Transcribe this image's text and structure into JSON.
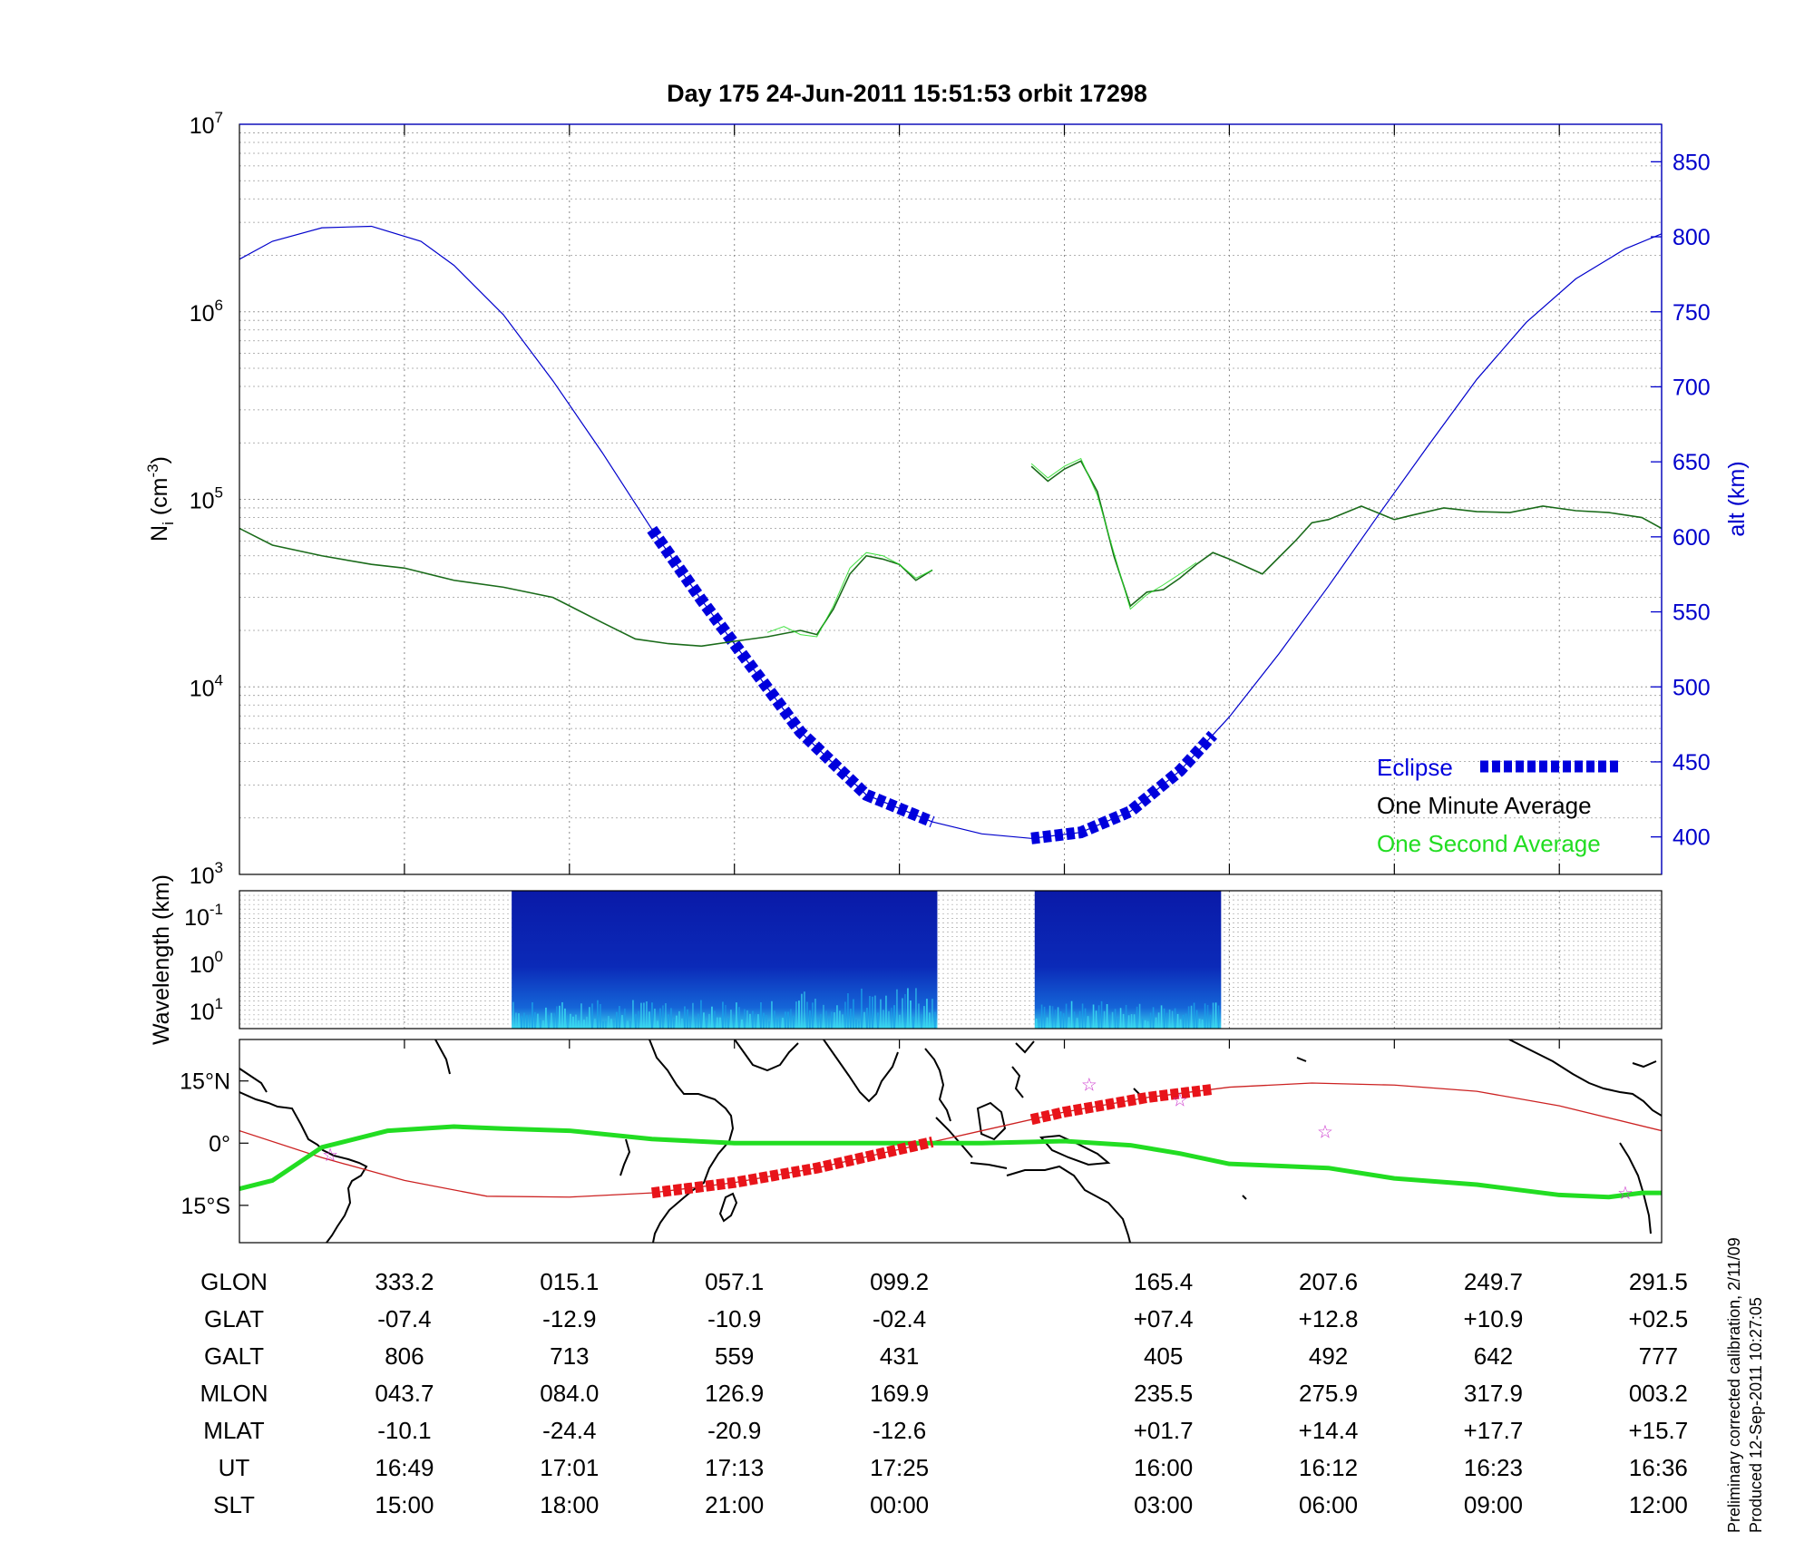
{
  "title": "Day 175  24-Jun-2011 15:51:53   orbit 17298",
  "colors": {
    "altitude": "#0000cc",
    "eclipse": "#0000dd",
    "one_minute": "#000000",
    "one_second": "#22dd22",
    "density": "#1a6b1a",
    "track_eclipse": "#e8141a",
    "orbit_line": "#cc2222",
    "magnetic_equator": "#22dd22",
    "star": "#cc33cc",
    "spectrogram_dark": "#0a1a9c",
    "spectrogram_bright": "#39d8f0"
  },
  "chart_data": [
    {
      "type": "line",
      "panel": "density-altitude",
      "ylabel": "N",
      "ylabel_sub": "i",
      "ylabel_unit": "(cm",
      "ylabel_sup": "-3",
      "ylabel_end": ")",
      "yscale": "log",
      "ylim": [
        1000,
        10000000
      ],
      "yticks": [
        {
          "base": "10",
          "exp": "3"
        },
        {
          "base": "10",
          "exp": "4"
        },
        {
          "base": "10",
          "exp": "5"
        },
        {
          "base": "10",
          "exp": "6"
        },
        {
          "base": "10",
          "exp": "7"
        }
      ],
      "y2label": "alt (km)",
      "y2lim": [
        375,
        875
      ],
      "y2ticks": [
        "400",
        "450",
        "500",
        "550",
        "600",
        "650",
        "700",
        "750",
        "800",
        "850"
      ],
      "grid": true,
      "legend": {
        "position": "bottom-right",
        "eclipse": "Eclipse",
        "one_minute": "One Minute Average",
        "one_second": "One Second Average"
      },
      "altitude_km": {
        "x": [
          0,
          0.2,
          0.5,
          0.8,
          1.1,
          1.3,
          1.6,
          1.9,
          2.2,
          2.5,
          2.8,
          3.1,
          3.4,
          3.8,
          4.2,
          4.5,
          4.8,
          5.1,
          5.4,
          5.7,
          6.0,
          6.3,
          6.6,
          6.9,
          7.2,
          7.5,
          7.8,
          8.1,
          8.4,
          8.62
        ],
        "y": [
          785,
          797,
          806,
          807,
          797,
          781,
          748,
          704,
          656,
          605,
          558,
          514,
          470,
          428,
          410,
          402,
          399,
          403,
          417,
          444,
          480,
          522,
          567,
          614,
          660,
          705,
          743,
          772,
          792,
          802
        ],
        "eclipse_ranges": [
          [
            2.5,
            4.2
          ],
          [
            4.8,
            5.9
          ]
        ]
      },
      "series": [
        {
          "name": "One Minute Average",
          "x": [
            0,
            0.2,
            0.5,
            0.8,
            1.0,
            1.3,
            1.6,
            1.9,
            2.2,
            2.4,
            2.6,
            2.8,
            3.0,
            3.2,
            3.4,
            3.5,
            3.6,
            3.7,
            3.8,
            3.9,
            4.0,
            4.1,
            4.2
          ],
          "y": [
            70000,
            57000,
            50000,
            45000,
            43000,
            37000,
            34000,
            30000,
            22000,
            18000,
            17000,
            16500,
            17500,
            18500,
            20000,
            19000,
            26000,
            40000,
            50000,
            48000,
            45000,
            37000,
            42000
          ]
        },
        {
          "name": "One Minute Average",
          "x": [
            4.8,
            4.9,
            5.0,
            5.1,
            5.2,
            5.3,
            5.4,
            5.5,
            5.6,
            5.7,
            5.8,
            5.9,
            6.0,
            6.2,
            6.4,
            6.5,
            6.6,
            6.8,
            7.0,
            7.1,
            7.3,
            7.5,
            7.7,
            7.9,
            8.1,
            8.3,
            8.5,
            8.62
          ],
          "y": [
            150000,
            125000,
            145000,
            160000,
            110000,
            50000,
            27000,
            32000,
            33000,
            38000,
            45000,
            52000,
            48000,
            40000,
            60000,
            75000,
            78000,
            92000,
            78000,
            82000,
            90000,
            86000,
            85000,
            92000,
            87000,
            85000,
            80000,
            70000
          ]
        },
        {
          "name": "One Second Average",
          "x": [
            3.2,
            3.3,
            3.4,
            3.5,
            3.6,
            3.7,
            3.8,
            3.9,
            4.0,
            4.1,
            4.2
          ],
          "y": [
            19500,
            21000,
            19000,
            18500,
            27000,
            43000,
            52000,
            50000,
            45000,
            38000,
            42000
          ]
        },
        {
          "name": "One Second Average",
          "x": [
            4.8,
            4.9,
            5.0,
            5.1,
            5.2,
            5.3,
            5.4,
            5.5,
            5.6,
            5.7,
            5.8
          ],
          "y": [
            155000,
            130000,
            150000,
            165000,
            105000,
            52000,
            26000,
            31000,
            35000,
            40000,
            46000
          ]
        }
      ]
    },
    {
      "type": "heatmap",
      "panel": "spectrogram",
      "ylabel": "Wavelength (km)",
      "yticks": [
        {
          "base": "10",
          "exp": "-1"
        },
        {
          "base": "10",
          "exp": "0"
        },
        {
          "base": "10",
          "exp": "1"
        }
      ],
      "data_ranges": [
        [
          1.65,
          4.23
        ],
        [
          4.82,
          5.95
        ]
      ]
    },
    {
      "type": "map",
      "panel": "ground-track",
      "yticks": [
        "15°N",
        "0°",
        "15°S"
      ],
      "orbit_track": {
        "x": [
          0,
          0.5,
          1.0,
          1.5,
          2.0,
          2.5,
          3.0,
          3.5,
          4.0,
          4.5,
          5.0,
          5.5,
          6.0,
          6.5,
          7.0,
          7.5,
          8.0,
          8.62
        ],
        "y": [
          3,
          -3.5,
          -9,
          -12.8,
          -13,
          -12,
          -9.5,
          -6,
          -1.5,
          3,
          7.5,
          11,
          13.5,
          14.5,
          14,
          12.5,
          9,
          3
        ],
        "eclipse_ranges": [
          [
            2.5,
            4.2
          ],
          [
            4.8,
            5.9
          ]
        ]
      },
      "magnetic_equator": {
        "x": [
          0,
          0.2,
          0.5,
          0.9,
          1.3,
          1.6,
          2.0,
          2.5,
          3.0,
          3.5,
          4.0,
          4.5,
          5.0,
          5.4,
          5.7,
          6.0,
          6.3,
          6.6,
          7.0,
          7.5,
          8.0,
          8.3,
          8.5,
          8.62
        ],
        "y": [
          -11,
          -9,
          -1,
          3,
          4,
          3.5,
          3,
          1,
          0,
          0,
          0,
          0,
          0.5,
          -0.5,
          -2.5,
          -5,
          -5.5,
          -6,
          -8.5,
          -10,
          -12.5,
          -13,
          -12,
          -12
        ]
      },
      "stars": {
        "x": [
          0.55,
          5.15,
          5.7,
          6.58,
          8.4
        ],
        "y": [
          -2.8,
          14.2,
          10.5,
          2.8,
          -12
        ]
      }
    }
  ],
  "table": {
    "row_labels": [
      "GLON",
      "GLAT",
      "GALT",
      "MLON",
      "MLAT",
      "UT",
      "SLT"
    ],
    "columns": [
      {
        "x": 1,
        "values": [
          "333.2",
          "-07.4",
          "806",
          "043.7",
          "-10.1",
          "16:49",
          "15:00"
        ]
      },
      {
        "x": 2,
        "values": [
          "015.1",
          "-12.9",
          "713",
          "084.0",
          "-24.4",
          "17:01",
          "18:00"
        ]
      },
      {
        "x": 3,
        "values": [
          "057.1",
          "-10.9",
          "559",
          "126.9",
          "-20.9",
          "17:13",
          "21:00"
        ]
      },
      {
        "x": 4,
        "values": [
          "099.2",
          "-02.4",
          "431",
          "169.9",
          "-12.6",
          "17:25",
          "00:00"
        ]
      },
      {
        "x": 5.6,
        "values": [
          "165.4",
          "+07.4",
          "405",
          "235.5",
          "+01.7",
          "16:00",
          "03:00"
        ]
      },
      {
        "x": 6.6,
        "values": [
          "207.6",
          "+12.8",
          "492",
          "275.9",
          "+14.4",
          "16:12",
          "06:00"
        ]
      },
      {
        "x": 7.6,
        "values": [
          "249.7",
          "+10.9",
          "642",
          "317.9",
          "+17.7",
          "16:23",
          "09:00"
        ]
      },
      {
        "x": 8.6,
        "values": [
          "291.5",
          "+02.5",
          "777",
          "003.2",
          "+15.7",
          "16:36",
          "12:00"
        ]
      }
    ]
  },
  "footnote": {
    "line1": "Preliminary corrected calibration, 2/11/09",
    "line2": "Produced 12-Sep-2011 10:27:05"
  }
}
